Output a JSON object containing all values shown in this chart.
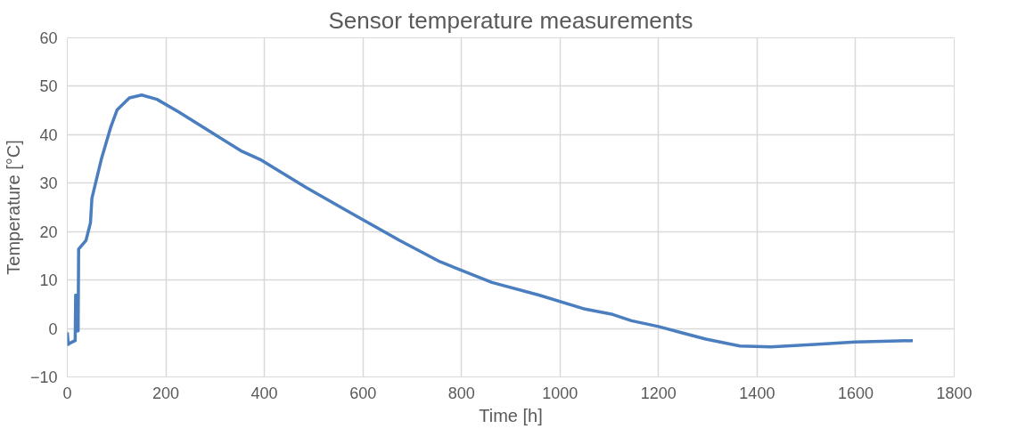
{
  "chart_data": {
    "type": "line",
    "title": "Sensor temperature measurements",
    "xlabel": "Time [h]",
    "ylabel": "Temperature [°C]",
    "x": [
      0,
      2,
      4,
      16,
      17,
      19,
      20,
      21,
      22,
      23,
      38,
      47,
      50,
      69,
      88,
      101,
      126,
      151,
      182,
      226,
      289,
      352,
      391,
      485,
      573,
      674,
      756,
      862,
      957,
      1051,
      1107,
      1145,
      1200,
      1296,
      1365,
      1428,
      1517,
      1599,
      1716
    ],
    "series": [
      {
        "color": "#4a7ebf",
        "values": [
          -0.8,
          -3.3,
          -3.1,
          -2.5,
          6.9,
          -0.5,
          6.9,
          -0.5,
          -0.5,
          16.4,
          18.2,
          21.8,
          26.9,
          34.9,
          41.5,
          45.1,
          47.6,
          48.2,
          47.3,
          44.7,
          40.7,
          36.7,
          34.9,
          29.1,
          24.0,
          18.2,
          13.8,
          9.5,
          6.9,
          4.0,
          2.9,
          1.6,
          0.4,
          -2.2,
          -3.6,
          -3.8,
          -3.3,
          -2.8,
          -2.5
        ]
      }
    ],
    "xlim": [
      0,
      1800
    ],
    "ylim": [
      -10,
      60
    ],
    "xticks": [
      0,
      200,
      400,
      600,
      800,
      1000,
      1200,
      1400,
      1600,
      1800
    ],
    "yticks": [
      -10,
      0,
      10,
      20,
      30,
      40,
      50,
      60
    ],
    "grid": true,
    "marker": "none",
    "line_style": "solid"
  }
}
